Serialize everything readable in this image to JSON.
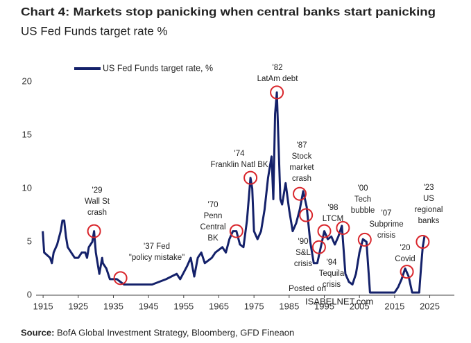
{
  "chart_data": {
    "type": "line",
    "title": "Chart 4: Markets stop panicking when central banks start panicking",
    "subtitle": "US Fed Funds target rate %",
    "x": [
      1914.9,
      1915.3,
      1917,
      1917.5,
      1918,
      1919,
      1920,
      1920.5,
      1921,
      1921.5,
      1922,
      1923,
      1924,
      1925,
      1926,
      1927,
      1927.5,
      1928,
      1929,
      1929.5,
      1930,
      1930.5,
      1931,
      1931.8,
      1932,
      1933,
      1934,
      1936,
      1937,
      1938,
      1942,
      1946,
      1948,
      1950,
      1953,
      1954,
      1956,
      1957,
      1958,
      1959,
      1960,
      1961,
      1963,
      1964,
      1966,
      1967,
      1968,
      1969,
      1970,
      1971,
      1972,
      1973,
      1974,
      1974.5,
      1975,
      1976,
      1977,
      1978,
      1979,
      1980,
      1980.5,
      1981,
      1981.5,
      1982,
      1982.5,
      1983,
      1984,
      1985,
      1986,
      1987,
      1988,
      1989,
      1990,
      1991,
      1992,
      1993,
      1994,
      1995,
      1996,
      1997,
      1998,
      1999,
      2000,
      2001,
      2002,
      2003,
      2004,
      2005,
      2006,
      2007,
      2008,
      2015,
      2016,
      2017,
      2018,
      2019,
      2020,
      2022,
      2022.5,
      2023,
      2023.5
    ],
    "series": [
      {
        "name": "US Fed Funds target rate, %",
        "color": "#14216a",
        "values": [
          6,
          4,
          3.5,
          3,
          4,
          4.75,
          6,
          7,
          7,
          5.5,
          4.5,
          4,
          3.5,
          3.5,
          4,
          4,
          3.5,
          4.5,
          5,
          6,
          4,
          3,
          2,
          3.5,
          3,
          2.5,
          1.5,
          1.5,
          1.25,
          1,
          1,
          1,
          1.25,
          1.5,
          2,
          1.5,
          2.75,
          3.5,
          1.75,
          3.5,
          4,
          3,
          3.5,
          4,
          4.5,
          4,
          5.25,
          6,
          6,
          4.75,
          4.5,
          7,
          11,
          10,
          6,
          5.25,
          6,
          8,
          11,
          13,
          9,
          17,
          19,
          14,
          9,
          8.5,
          10.5,
          8,
          6,
          6.75,
          8,
          9.75,
          8.25,
          5,
          3,
          3,
          4.5,
          6,
          5.25,
          5.5,
          4.75,
          5.5,
          6.5,
          2,
          1.25,
          1,
          2,
          4,
          5.25,
          5,
          0.25,
          0.25,
          0.75,
          1.5,
          2.5,
          1.75,
          0.25,
          0.25,
          2.5,
          4.5,
          5.5
        ]
      }
    ],
    "xlim": [
      1913,
      2032
    ],
    "xticks": [
      1915,
      1925,
      1935,
      1945,
      1955,
      1965,
      1975,
      1985,
      1995,
      2005,
      2015,
      2025
    ],
    "ylim": [
      0,
      21
    ],
    "yticks": [
      0,
      5,
      10,
      15,
      20
    ],
    "annotation_color": "#d9262c",
    "annotations": [
      {
        "text": [
          "'29",
          "Wall St",
          "crash"
        ],
        "x": 1929.5,
        "y": 6
      },
      {
        "text": [
          "'37 Fed",
          "\"policy mistake\""
        ],
        "x": 1937,
        "y": 1.6
      },
      {
        "text": [
          "'70",
          "Penn",
          "Central",
          "BK"
        ],
        "x": 1970,
        "y": 6
      },
      {
        "text": [
          "'74",
          "Franklin Natl BK"
        ],
        "x": 1974,
        "y": 11
      },
      {
        "text": [
          "'82",
          "LatAm debt"
        ],
        "x": 1981.5,
        "y": 19
      },
      {
        "text": [
          "'87",
          "Stock",
          "market",
          "crash"
        ],
        "x": 1988,
        "y": 9.5
      },
      {
        "text": [
          "'90",
          "S&L",
          "crisis"
        ],
        "x": 1989.8,
        "y": 7.5
      },
      {
        "text": [
          "'94",
          "Tequila",
          "crisis"
        ],
        "x": 1993.5,
        "y": 4.5
      },
      {
        "text": [
          "'98",
          "LTCM"
        ],
        "x": 1995,
        "y": 6
      },
      {
        "text": [
          "'00",
          "Tech",
          "bubble"
        ],
        "x": 2000.3,
        "y": 6.3
      },
      {
        "text": [
          "'07",
          "Subprime",
          "crisis"
        ],
        "x": 2006.5,
        "y": 5.2
      },
      {
        "text": [
          "'20",
          "Covid"
        ],
        "x": 2018.5,
        "y": 2.2
      },
      {
        "text": [
          "'23",
          "US",
          "regional",
          "banks"
        ],
        "x": 2023,
        "y": 5
      }
    ],
    "watermark": [
      "Posted on",
      "ISABELNET.com"
    ],
    "source_label": "Source:",
    "source": "BofA Global Investment Strategy, Bloomberg, GFD Fineaon"
  }
}
